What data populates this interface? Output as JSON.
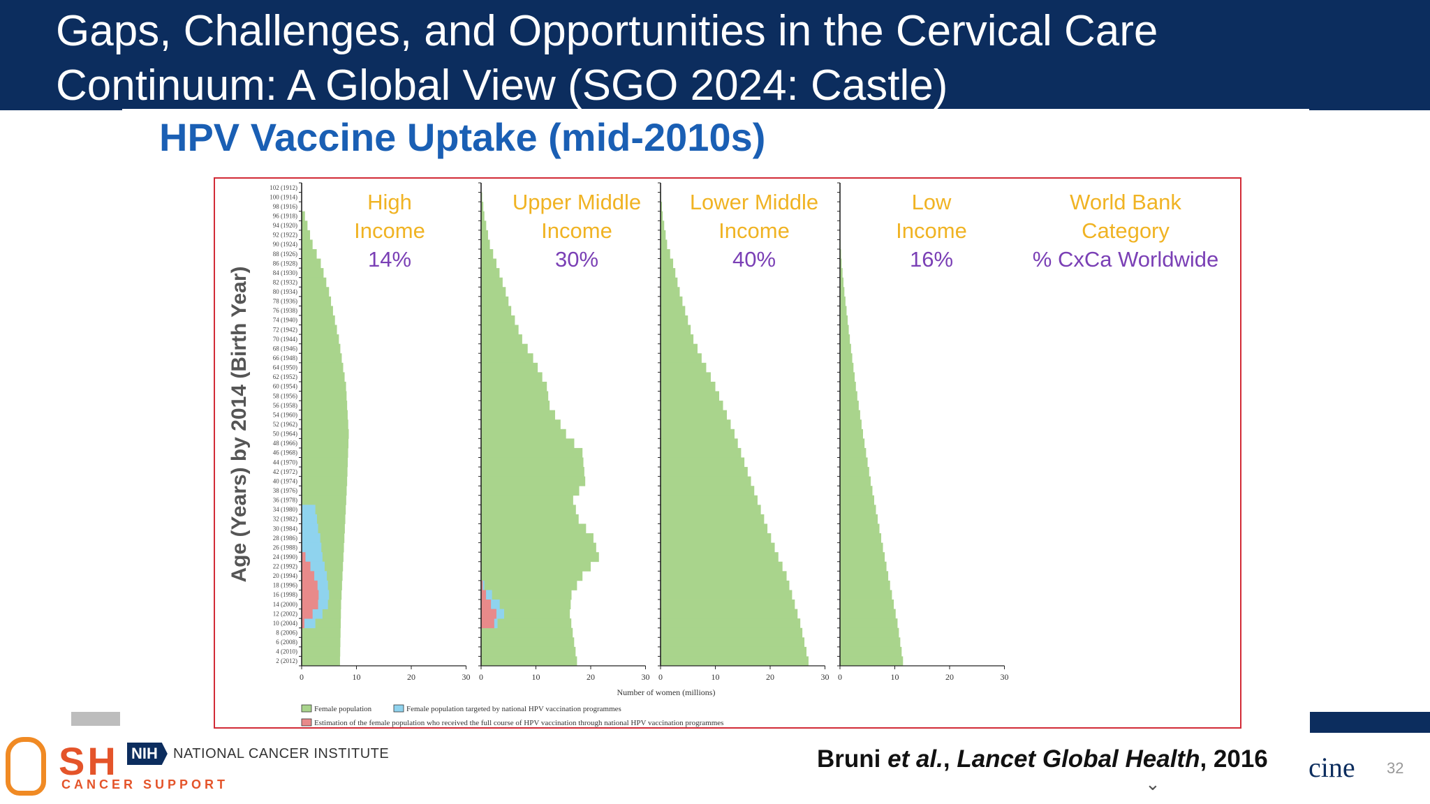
{
  "slide": {
    "title": "Gaps, Challenges, and Opportunities in the Cervical Care\nContinuum: A Global View (SGO 2024: Castle)",
    "subtitle": "HPV Vaccine Uptake (mid-2010s)",
    "page_number": "32",
    "partial_text": "cine"
  },
  "footer": {
    "logo_letters": "SH",
    "logo_tagline": "CANCER SUPPORT",
    "nih_badge": "NIH",
    "nci_label": "NATIONAL CANCER INSTITUTE",
    "citation_authors": "Bruni ",
    "citation_etal": "et al.",
    "citation_sep": ", ",
    "citation_journal": "Lancet Global Health",
    "citation_year": ", 2016"
  },
  "colors": {
    "title_band": "#0c2d5e",
    "subtitle": "#1a5fb4",
    "female_population": "#a9d48c",
    "targeted": "#8fd3ee",
    "full_course": "#e88a8a",
    "group_name": "#f0b323",
    "group_percent": "#7a3fb5",
    "frame": "#d22b36"
  },
  "chart_data": {
    "type": "bar",
    "orientation": "horizontal",
    "ylabel": "Age (Years) by 2014 (Birth Year)",
    "xlabel": "Number of women (millions)",
    "x_ticks": [
      "0",
      "10",
      "20",
      "30"
    ],
    "xlim": [
      0,
      30
    ],
    "y_tick_labels": [
      "102 (1912)",
      "100 (1914)",
      "98 (1916)",
      "96 (1918)",
      "94 (1920)",
      "92 (1922)",
      "90 (1924)",
      "88 (1926)",
      "86 (1928)",
      "84 (1930)",
      "82 (1932)",
      "80 (1934)",
      "78 (1936)",
      "76 (1938)",
      "74 (1940)",
      "72 (1942)",
      "70 (1944)",
      "68 (1946)",
      "66 (1948)",
      "64 (1950)",
      "62 (1952)",
      "60 (1954)",
      "58 (1956)",
      "56 (1958)",
      "54 (1960)",
      "52 (1962)",
      "50 (1964)",
      "48 (1966)",
      "46 (1968)",
      "44 (1970)",
      "42 (1972)",
      "40 (1974)",
      "38 (1976)",
      "36 (1978)",
      "34 (1980)",
      "32 (1982)",
      "30 (1984)",
      "28 (1986)",
      "26 (1988)",
      "24 (1990)",
      "22 (1992)",
      "20 (1994)",
      "18 (1996)",
      "16 (1998)",
      "14 (2000)",
      "12 (2002)",
      "10 (2004)",
      "8 (2006)",
      "6 (2008)",
      "4 (2010)",
      "2 (2012)"
    ],
    "legend": [
      {
        "label": "Female population",
        "color": "#a9d48c"
      },
      {
        "label": "Female population targeted by national HPV vaccination programmes",
        "color": "#8fd3ee"
      },
      {
        "label": "Estimation of the female population who received the full course of HPV vaccination through national HPV vaccination programmes",
        "color": "#e88a8a"
      }
    ],
    "legend_placement": "bottom-left",
    "category_header": {
      "line1": "World Bank",
      "line2": "Category",
      "line3": "% CxCa Worldwide"
    },
    "panels": [
      {
        "name_line1": "High",
        "name_line2": "Income",
        "percent": "14%",
        "female_population": {
          "ages": [
            2,
            14,
            28,
            40,
            50,
            60,
            70,
            80,
            86,
            90,
            96
          ],
          "values": [
            7,
            7.2,
            7.8,
            8.3,
            8.6,
            8.1,
            6.8,
            5.0,
            3.5,
            2.0,
            0.6
          ]
        },
        "targeted": {
          "ages": [
            8,
            10,
            12,
            14,
            16,
            18,
            20,
            22,
            24,
            26,
            28,
            30,
            32,
            34
          ],
          "values": [
            0,
            2.5,
            3.8,
            4.8,
            5.0,
            4.8,
            4.6,
            4.2,
            3.8,
            3.6,
            3.4,
            3.0,
            2.8,
            2.5
          ]
        },
        "full_course": {
          "ages": [
            10,
            12,
            14,
            16,
            18,
            20,
            22,
            24
          ],
          "values": [
            0.5,
            2.0,
            3.0,
            3.1,
            2.9,
            2.3,
            1.6,
            0.7
          ]
        }
      },
      {
        "name_line1": "Upper Middle",
        "name_line2": "Income",
        "percent": "30%",
        "female_population": {
          "ages": [
            2,
            12,
            16,
            20,
            24,
            28,
            32,
            36,
            40,
            46,
            50,
            56,
            60,
            66,
            70,
            76,
            80,
            86,
            90,
            96,
            100
          ],
          "values": [
            17.5,
            16.2,
            16.5,
            18.5,
            21.5,
            20.5,
            17.8,
            16.8,
            19.0,
            18.5,
            15.5,
            12.5,
            12.0,
            9.5,
            7.5,
            5.5,
            4.5,
            2.8,
            1.6,
            0.6,
            0.2
          ]
        },
        "targeted": {
          "ages": [
            10,
            12,
            14,
            16,
            18
          ],
          "values": [
            3.0,
            4.2,
            3.4,
            2.0,
            0.6
          ]
        },
        "full_course": {
          "ages": [
            10,
            12,
            14,
            16,
            18
          ],
          "values": [
            2.4,
            2.8,
            1.8,
            0.9,
            0.3
          ]
        }
      },
      {
        "name_line1": "Lower Middle",
        "name_line2": "Income",
        "percent": "40%",
        "female_population": {
          "ages": [
            2,
            10,
            20,
            24,
            30,
            40,
            50,
            60,
            66,
            70,
            80,
            86,
            90,
            96,
            100
          ],
          "values": [
            27.0,
            25.5,
            23.0,
            21.5,
            19.5,
            16.5,
            13.5,
            10.0,
            7.5,
            6.0,
            3.5,
            2.3,
            1.2,
            0.4,
            0.1
          ]
        },
        "targeted": {
          "ages": [],
          "values": []
        },
        "full_course": {
          "ages": [],
          "values": []
        }
      },
      {
        "name_line1": "Low",
        "name_line2": "Income",
        "percent": "16%",
        "female_population": {
          "ages": [
            2,
            10,
            20,
            30,
            40,
            50,
            60,
            70,
            80,
            86,
            90
          ],
          "values": [
            11.5,
            10.5,
            8.8,
            7.2,
            5.6,
            4.2,
            2.9,
            1.8,
            0.8,
            0.3,
            0.1
          ]
        },
        "targeted": {
          "ages": [],
          "values": []
        },
        "full_course": {
          "ages": [],
          "values": []
        }
      }
    ]
  }
}
